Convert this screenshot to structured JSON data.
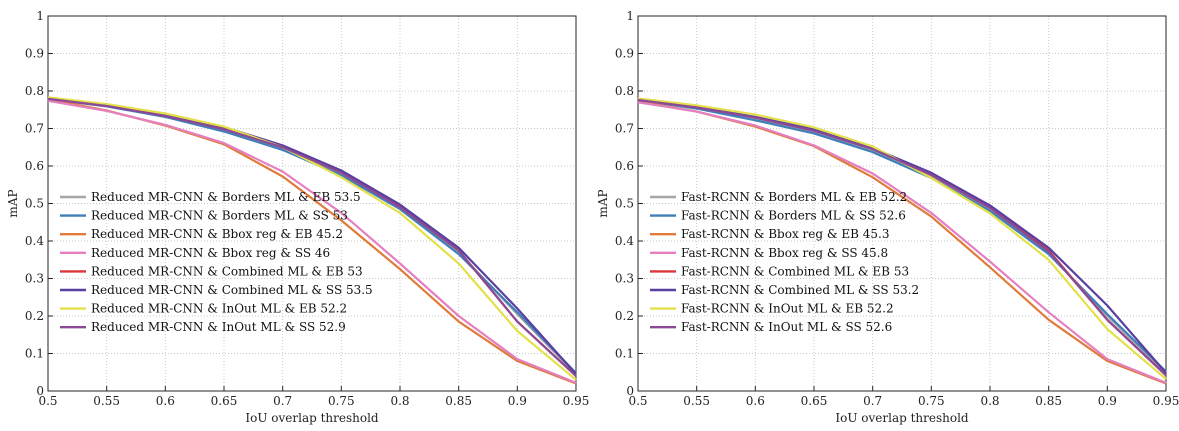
{
  "chart_data": [
    {
      "type": "line",
      "title": "",
      "xlabel": "IoU overlap threshold",
      "ylabel": "mAP",
      "x": [
        0.5,
        0.55,
        0.6,
        0.65,
        0.7,
        0.75,
        0.8,
        0.85,
        0.9,
        0.95
      ],
      "xticks": [
        "0.5",
        "0.55",
        "0.6",
        "0.65",
        "0.7",
        "0.75",
        "0.8",
        "0.85",
        "0.9",
        "0.95"
      ],
      "yticks": [
        "0",
        "0.1",
        "0.2",
        "0.3",
        "0.4",
        "0.5",
        "0.6",
        "0.7",
        "0.8",
        "0.9",
        "1"
      ],
      "xlim": [
        0.5,
        0.95
      ],
      "ylim": [
        0,
        1
      ],
      "grid": true,
      "legend_position": "bottom-left",
      "series": [
        {
          "name": "Reduced MR-CNN & Borders ML & EB 53.5",
          "color": "#a5a5a5",
          "values": [
            0.781,
            0.762,
            0.735,
            0.697,
            0.645,
            0.578,
            0.488,
            0.37,
            0.205,
            0.045
          ]
        },
        {
          "name": "Reduced MR-CNN & Borders ML & SS 53",
          "color": "#3f7fb9",
          "values": [
            0.779,
            0.759,
            0.731,
            0.692,
            0.643,
            0.575,
            0.485,
            0.365,
            0.21,
            0.048
          ]
        },
        {
          "name": "Reduced MR-CNN & Bbox reg & EB 45.2",
          "color": "#e07b39",
          "values": [
            0.778,
            0.748,
            0.708,
            0.658,
            0.572,
            0.455,
            0.325,
            0.185,
            0.08,
            0.02
          ]
        },
        {
          "name": "Reduced MR-CNN & Bbox reg & SS 46",
          "color": "#e47fc0",
          "values": [
            0.774,
            0.747,
            0.71,
            0.661,
            0.585,
            0.475,
            0.34,
            0.2,
            0.085,
            0.022
          ]
        },
        {
          "name": "Reduced MR-CNN & Combined ML & EB 53",
          "color": "#d9363e",
          "values": [
            0.78,
            0.762,
            0.735,
            0.7,
            0.65,
            0.585,
            0.492,
            0.375,
            0.185,
            0.04
          ]
        },
        {
          "name": "Reduced MR-CNN & Combined ML & SS 53.5",
          "color": "#5a3fa0",
          "values": [
            0.78,
            0.763,
            0.737,
            0.704,
            0.655,
            0.588,
            0.497,
            0.382,
            0.22,
            0.045
          ]
        },
        {
          "name": "Reduced MR-CNN & InOut ML & EB 52.2",
          "color": "#e3e04a",
          "values": [
            0.783,
            0.765,
            0.74,
            0.705,
            0.65,
            0.57,
            0.475,
            0.34,
            0.16,
            0.03
          ]
        },
        {
          "name": "Reduced MR-CNN & InOut ML & SS 52.9",
          "color": "#8c4a96",
          "values": [
            0.779,
            0.76,
            0.733,
            0.698,
            0.65,
            0.582,
            0.49,
            0.375,
            0.185,
            0.04
          ]
        }
      ]
    },
    {
      "type": "line",
      "title": "",
      "xlabel": "IoU overlap threshold",
      "ylabel": "mAP",
      "x": [
        0.5,
        0.55,
        0.6,
        0.65,
        0.7,
        0.75,
        0.8,
        0.85,
        0.9,
        0.95
      ],
      "xticks": [
        "0.5",
        "0.55",
        "0.6",
        "0.65",
        "0.7",
        "0.75",
        "0.8",
        "0.85",
        "0.9",
        "0.95"
      ],
      "yticks": [
        "0",
        "0.1",
        "0.2",
        "0.3",
        "0.4",
        "0.5",
        "0.6",
        "0.7",
        "0.8",
        "0.9",
        "1"
      ],
      "xlim": [
        0.5,
        0.95
      ],
      "ylim": [
        0,
        1
      ],
      "grid": true,
      "legend_position": "bottom-left",
      "series": [
        {
          "name": "Fast-RCNN & Borders ML & EB 52.2",
          "color": "#a5a5a5",
          "values": [
            0.778,
            0.755,
            0.725,
            0.69,
            0.64,
            0.57,
            0.482,
            0.368,
            0.2,
            0.05
          ]
        },
        {
          "name": "Fast-RCNN & Borders ML & SS 52.6",
          "color": "#3f7fb9",
          "values": [
            0.776,
            0.753,
            0.722,
            0.687,
            0.637,
            0.568,
            0.48,
            0.365,
            0.205,
            0.052
          ]
        },
        {
          "name": "Fast-RCNN & Bbox reg & EB 45.3",
          "color": "#e07b39",
          "values": [
            0.772,
            0.745,
            0.705,
            0.653,
            0.57,
            0.465,
            0.33,
            0.19,
            0.08,
            0.02
          ]
        },
        {
          "name": "Fast-RCNN & Bbox reg & SS 45.8",
          "color": "#e47fc0",
          "values": [
            0.77,
            0.745,
            0.708,
            0.655,
            0.58,
            0.475,
            0.345,
            0.21,
            0.085,
            0.022
          ]
        },
        {
          "name": "Fast-RCNN & Combined ML & EB 53",
          "color": "#d9363e",
          "values": [
            0.778,
            0.758,
            0.73,
            0.696,
            0.646,
            0.578,
            0.49,
            0.375,
            0.19,
            0.042
          ]
        },
        {
          "name": "Fast-RCNN & Combined ML & SS 53.2",
          "color": "#5a3fa0",
          "values": [
            0.777,
            0.758,
            0.731,
            0.698,
            0.648,
            0.582,
            0.495,
            0.382,
            0.228,
            0.048
          ]
        },
        {
          "name": "Fast-RCNN & InOut ML & EB 52.2",
          "color": "#e3e04a",
          "values": [
            0.78,
            0.762,
            0.737,
            0.703,
            0.652,
            0.568,
            0.474,
            0.35,
            0.165,
            0.032
          ]
        },
        {
          "name": "Fast-RCNN & InOut ML & SS 52.6",
          "color": "#8c4a96",
          "values": [
            0.776,
            0.756,
            0.729,
            0.694,
            0.645,
            0.576,
            0.488,
            0.372,
            0.19,
            0.042
          ]
        }
      ]
    }
  ]
}
